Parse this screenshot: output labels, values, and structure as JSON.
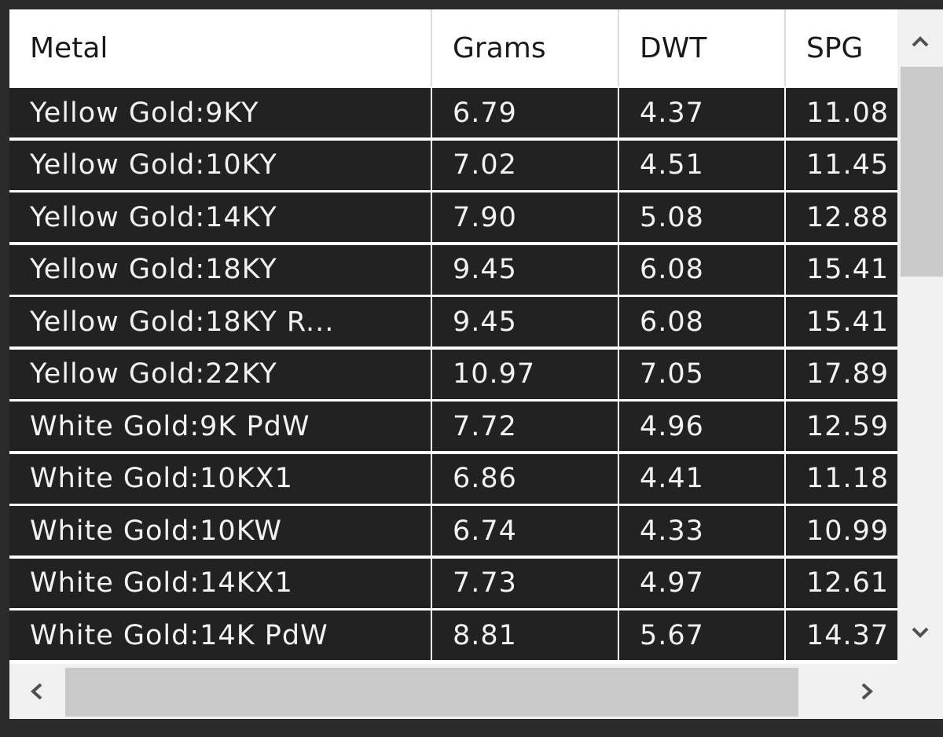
{
  "table": {
    "columns": [
      "Metal",
      "Grams",
      "DWT",
      "SPG"
    ],
    "rows": [
      [
        "Yellow Gold:9KY",
        "6.79",
        "4.37",
        "11.08"
      ],
      [
        "Yellow Gold:10KY",
        "7.02",
        "4.51",
        "11.45"
      ],
      [
        "Yellow Gold:14KY",
        "7.90",
        "5.08",
        "12.88"
      ],
      [
        "Yellow Gold:18KY",
        "9.45",
        "6.08",
        "15.41"
      ],
      [
        "Yellow Gold:18KY R...",
        "9.45",
        "6.08",
        "15.41"
      ],
      [
        "Yellow Gold:22KY",
        "10.97",
        "7.05",
        "17.89"
      ],
      [
        "White Gold:9K PdW",
        "7.72",
        "4.96",
        "12.59"
      ],
      [
        "White Gold:10KX1",
        "6.86",
        "4.41",
        "11.18"
      ],
      [
        "White Gold:10KW",
        "6.74",
        "4.33",
        "10.99"
      ],
      [
        "White Gold:14KX1",
        "7.73",
        "4.97",
        "12.61"
      ],
      [
        "White Gold:14K PdW",
        "8.81",
        "5.67",
        "14.37"
      ]
    ]
  }
}
